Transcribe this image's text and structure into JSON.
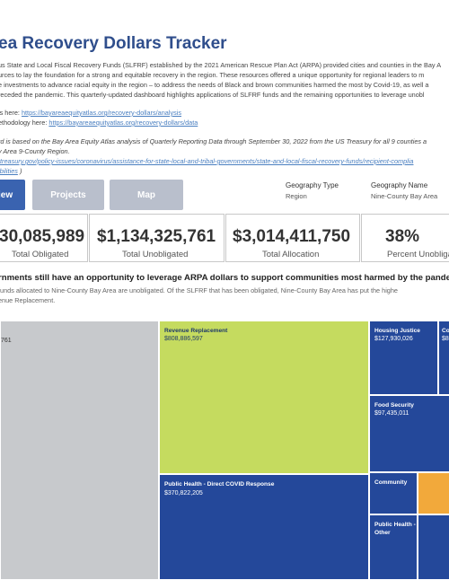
{
  "header": {
    "title": "ea Recovery Dollars Tracker"
  },
  "intro_lines": [
    "us State and Local Fiscal Recovery Funds (SLFRF) established by the 2021 American Rescue Plan Act (ARPA) provided cities and counties in the Bay A",
    "urces to lay the foundation for a strong and equitable recovery in the region. These resources offered a unique opportunity for regional leaders to m",
    "e investments to advance racial equity in the region – to address the needs of Black and brown communities harmed the most by Covid-19, as well a",
    "receded the pandemic. This quarterly-updated dashboard highlights applications of SLFRF funds and the remaining opportunities to leverage unobl"
  ],
  "links": {
    "analysis_prefix": "is here: ",
    "analysis_url": "https://bayareaequityatlas.org/recovery-dollars/analysis",
    "methodology_prefix": "ethodology here: ",
    "methodology_url": "https://bayareaequityatlas.org/recovery-dollars/data"
  },
  "note": {
    "line1": "rd is based on the Bay Area Equity Atlas analysis of Quarterly Reporting Data through September 30, 2022 from the US Treasury for all 9 counties a",
    "line2": "y Area 9-County Region.",
    "url_line": ".treasury.gov/policy-issues/coronavirus/assistance-for-state-local-and-tribal-governments/state-and-local-fiscal-recovery-funds/recipient-complia",
    "url_line2": "ibilities",
    "url_line2_suffix": ")"
  },
  "tabs": {
    "overview": "iew",
    "projects": "Projects",
    "map": "Map"
  },
  "filters": {
    "geo_type_label": "Geography Type",
    "geo_type_value": "Region",
    "geo_name_label": "Geography Name",
    "geo_name_value": "Nine-County Bay Area"
  },
  "kpis": [
    {
      "value": "30,085,989",
      "label": "Total Obligated"
    },
    {
      "value": "$1,134,325,761",
      "label": "Total Unobligated"
    },
    {
      "value": "$3,014,411,750",
      "label": "Total Allocation"
    },
    {
      "value": "38%",
      "label": "Percent Unobligat"
    }
  ],
  "headline": "rnments still have an opportunity to leverage ARPA dollars to support communities most harmed by the pande",
  "sub_lines": [
    "funds allocated to Nine-County Bay Area are unobligated. Of the SLFRF that has been obligated, Nine-County Bay Area has put the highe",
    "enue Replacement."
  ],
  "treemap": {
    "unobligated_value": "761",
    "revenue_name": "Revenue Replacement",
    "revenue_value": "$808,886,597",
    "public_health_name": "Public Health - Direct COVID Response",
    "public_health_value": "$370,822,205",
    "housing_name": "Housing Justice",
    "housing_value": "$127,930,026",
    "food_name": "Food Security",
    "food_value": "$97,435,011",
    "community_name": "Community",
    "ph_other_name": "Public Health - Other",
    "cut_name": "Co",
    "cut_value": "$8"
  },
  "colors": {
    "accent": "#2f4e8c",
    "tab_active": "#3a63b0",
    "tab_inactive": "#b9bfcc",
    "unobligated": "#c7c9cc",
    "revenue": "#c5db5f",
    "navy": "#24489a",
    "orange": "#f2a93b"
  }
}
